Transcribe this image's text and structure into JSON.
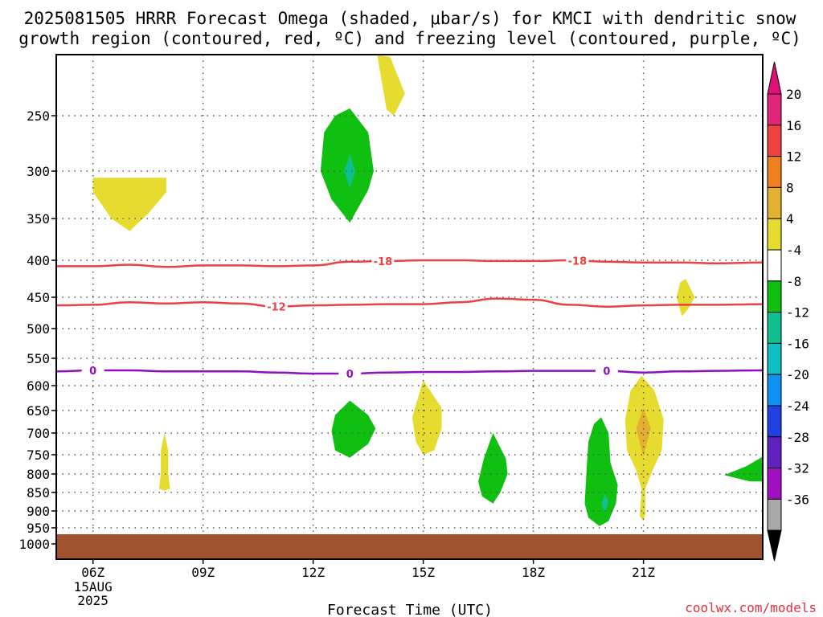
{
  "chart_data": {
    "type": "contour",
    "title_line1": "2025081505 HRRR Forecast Omega (shaded, μbar/s) for KMCI with dendritic snow",
    "title_line2": "growth region (contoured, red, ºC) and freezing level (contoured, purple, ºC)",
    "xlabel": "Forecast Time (UTC)",
    "credit": "coolwx.com/models",
    "x_range": [
      5,
      24.25
    ],
    "x_ticks": [
      {
        "hour": 6,
        "label": "06Z",
        "sub1": "15AUG",
        "sub2": "2025"
      },
      {
        "hour": 9,
        "label": "09Z"
      },
      {
        "hour": 12,
        "label": "12Z"
      },
      {
        "hour": 15,
        "label": "15Z"
      },
      {
        "hour": 18,
        "label": "18Z"
      },
      {
        "hour": 21,
        "label": "21Z"
      }
    ],
    "y_ticks": [
      250,
      300,
      350,
      400,
      450,
      500,
      550,
      600,
      650,
      700,
      750,
      800,
      850,
      900,
      950,
      1000
    ],
    "y_range_mb": [
      200,
      1040
    ],
    "colorbar": {
      "levels": [
        {
          "label": "20",
          "color": "#e0247a"
        },
        {
          "label": "16",
          "color": "#f04040"
        },
        {
          "label": "12",
          "color": "#ee8020"
        },
        {
          "label": "8",
          "color": "#e4b030"
        },
        {
          "label": "4",
          "color": "#e6dc30"
        },
        {
          "label": "-4",
          "color": "#ffffff"
        },
        {
          "label": "-8",
          "color": "#10c010"
        },
        {
          "label": "-12",
          "color": "#10c090"
        },
        {
          "label": "-16",
          "color": "#10c0c0"
        },
        {
          "label": "-20",
          "color": "#1090f0"
        },
        {
          "label": "-24",
          "color": "#2040e0"
        },
        {
          "label": "-28",
          "color": "#6020c0"
        },
        {
          "label": "-32",
          "color": "#a010c0"
        },
        {
          "label": "-36",
          "color": "#a8a8a8"
        }
      ],
      "top_arrow_color": "#e0107a",
      "bottom_arrow_color": "#000000"
    },
    "contours": [
      {
        "name": "-18",
        "color": "#ee4040",
        "label_positions": [
          13.9,
          19.2
        ],
        "points": [
          [
            5,
            408
          ],
          [
            6,
            408
          ],
          [
            7,
            406
          ],
          [
            8,
            409
          ],
          [
            9,
            407
          ],
          [
            10,
            407
          ],
          [
            11,
            408
          ],
          [
            12,
            407
          ],
          [
            13,
            402
          ],
          [
            14,
            401
          ],
          [
            15,
            400
          ],
          [
            16,
            400
          ],
          [
            17,
            401
          ],
          [
            18,
            401
          ],
          [
            19,
            400
          ],
          [
            20,
            402
          ],
          [
            21,
            403
          ],
          [
            22,
            403
          ],
          [
            23,
            404
          ],
          [
            24.25,
            403
          ]
        ]
      },
      {
        "name": "-12",
        "color": "#ee4040",
        "label_positions": [
          11
        ],
        "points": [
          [
            5,
            463
          ],
          [
            6,
            462
          ],
          [
            7,
            458
          ],
          [
            8,
            460
          ],
          [
            9,
            458
          ],
          [
            10,
            460
          ],
          [
            11,
            465
          ],
          [
            12,
            463
          ],
          [
            13,
            462
          ],
          [
            14,
            461
          ],
          [
            15,
            461
          ],
          [
            16,
            458
          ],
          [
            17,
            452
          ],
          [
            18,
            454
          ],
          [
            19,
            462
          ],
          [
            20,
            465
          ],
          [
            21,
            463
          ],
          [
            22,
            462
          ],
          [
            23,
            462
          ],
          [
            24.25,
            461
          ]
        ]
      },
      {
        "name": "0",
        "color": "#9010c0",
        "label_positions": [
          6,
          13,
          20
        ],
        "points": [
          [
            5,
            574
          ],
          [
            6,
            572
          ],
          [
            7,
            572
          ],
          [
            8,
            574
          ],
          [
            9,
            574
          ],
          [
            10,
            574
          ],
          [
            11,
            576
          ],
          [
            12,
            578
          ],
          [
            13,
            578
          ],
          [
            14,
            576
          ],
          [
            15,
            575
          ],
          [
            16,
            575
          ],
          [
            17,
            574
          ],
          [
            18,
            573
          ],
          [
            19,
            573
          ],
          [
            20,
            573
          ],
          [
            21,
            576
          ],
          [
            22,
            574
          ],
          [
            23,
            573
          ],
          [
            24.25,
            572
          ]
        ]
      }
    ],
    "omega_areas": [
      {
        "name": "positive-4-8",
        "color": "#e6dc30",
        "points": [
          [
            13.75,
            200
          ],
          [
            14.1,
            202
          ],
          [
            14.5,
            232
          ],
          [
            14.2,
            250
          ],
          [
            14.0,
            245
          ],
          [
            13.8,
            210
          ]
        ]
      },
      {
        "name": "positive-4-8",
        "color": "#e6dc30",
        "points": [
          [
            6.0,
            307
          ],
          [
            8.0,
            307
          ],
          [
            8.0,
            322
          ],
          [
            7.5,
            345
          ],
          [
            7.0,
            365
          ],
          [
            6.5,
            350
          ],
          [
            6.0,
            322
          ]
        ]
      },
      {
        "name": "negative-4-8",
        "color": "#10c010",
        "points": [
          [
            13.0,
            244
          ],
          [
            13.5,
            265
          ],
          [
            13.65,
            300
          ],
          [
            13.5,
            320
          ],
          [
            13.0,
            355
          ],
          [
            12.5,
            330
          ],
          [
            12.2,
            300
          ],
          [
            12.3,
            265
          ],
          [
            12.6,
            250
          ]
        ]
      },
      {
        "name": "negative-8-12",
        "color": "#10c090",
        "points": [
          [
            13.0,
            285
          ],
          [
            13.15,
            300
          ],
          [
            13.0,
            318
          ],
          [
            12.85,
            300
          ]
        ]
      },
      {
        "name": "positive-4-8",
        "color": "#e6dc30",
        "points": [
          [
            22.15,
            425
          ],
          [
            22.4,
            450
          ],
          [
            22.2,
            470
          ],
          [
            22.05,
            480
          ],
          [
            21.9,
            450
          ],
          [
            22.0,
            430
          ]
        ]
      },
      {
        "name": "negative-4-8",
        "color": "#10c010",
        "points": [
          [
            13.0,
            630
          ],
          [
            13.5,
            660
          ],
          [
            13.7,
            690
          ],
          [
            13.5,
            725
          ],
          [
            13.0,
            758
          ],
          [
            12.6,
            740
          ],
          [
            12.5,
            695
          ],
          [
            12.6,
            660
          ]
        ]
      },
      {
        "name": "positive-4-8",
        "color": "#e6dc30",
        "points": [
          [
            15.0,
            590
          ],
          [
            15.5,
            645
          ],
          [
            15.5,
            690
          ],
          [
            15.3,
            740
          ],
          [
            15.0,
            750
          ],
          [
            14.8,
            720
          ],
          [
            14.7,
            665
          ]
        ]
      },
      {
        "name": "positive-4-8",
        "color": "#e6dc30",
        "points": [
          [
            7.95,
            700
          ],
          [
            8.05,
            740
          ],
          [
            8.05,
            800
          ],
          [
            8.1,
            840
          ],
          [
            7.95,
            845
          ],
          [
            7.8,
            840
          ],
          [
            7.85,
            800
          ],
          [
            7.85,
            740
          ]
        ]
      },
      {
        "name": "negative-4-8",
        "color": "#10c010",
        "points": [
          [
            16.9,
            700
          ],
          [
            17.25,
            760
          ],
          [
            17.3,
            800
          ],
          [
            17.1,
            850
          ],
          [
            16.9,
            880
          ],
          [
            16.6,
            860
          ],
          [
            16.5,
            820
          ],
          [
            16.65,
            760
          ]
        ]
      },
      {
        "name": "negative-4-8",
        "color": "#10c010",
        "points": [
          [
            19.85,
            665
          ],
          [
            20.05,
            700
          ],
          [
            20.1,
            770
          ],
          [
            20.3,
            830
          ],
          [
            20.25,
            880
          ],
          [
            20.05,
            930
          ],
          [
            19.8,
            945
          ],
          [
            19.5,
            920
          ],
          [
            19.4,
            880
          ],
          [
            19.45,
            790
          ],
          [
            19.5,
            720
          ],
          [
            19.65,
            680
          ]
        ]
      },
      {
        "name": "negative-8-12",
        "color": "#10c090",
        "points": [
          [
            19.95,
            855
          ],
          [
            20.05,
            875
          ],
          [
            19.95,
            905
          ],
          [
            19.85,
            880
          ]
        ]
      },
      {
        "name": "positive-4-8",
        "color": "#e6dc30",
        "points": [
          [
            20.95,
            582
          ],
          [
            21.3,
            610
          ],
          [
            21.55,
            670
          ],
          [
            21.5,
            740
          ],
          [
            21.25,
            790
          ],
          [
            21.05,
            840
          ],
          [
            21.05,
            905
          ],
          [
            21.0,
            930
          ],
          [
            20.9,
            915
          ],
          [
            20.95,
            840
          ],
          [
            20.8,
            790
          ],
          [
            20.55,
            740
          ],
          [
            20.5,
            670
          ],
          [
            20.65,
            610
          ]
        ]
      },
      {
        "name": "positive-8-12",
        "color": "#e4b030",
        "points": [
          [
            21.0,
            645
          ],
          [
            21.2,
            690
          ],
          [
            21.0,
            755
          ],
          [
            20.8,
            690
          ]
        ]
      },
      {
        "name": "negative-4-8",
        "color": "#10c010",
        "points": [
          [
            24.25,
            755
          ],
          [
            24.25,
            820
          ],
          [
            23.9,
            820
          ],
          [
            23.2,
            803
          ],
          [
            23.8,
            780
          ]
        ]
      }
    ],
    "ground_color": "#a0522d",
    "ground_top_mb": 970
  }
}
